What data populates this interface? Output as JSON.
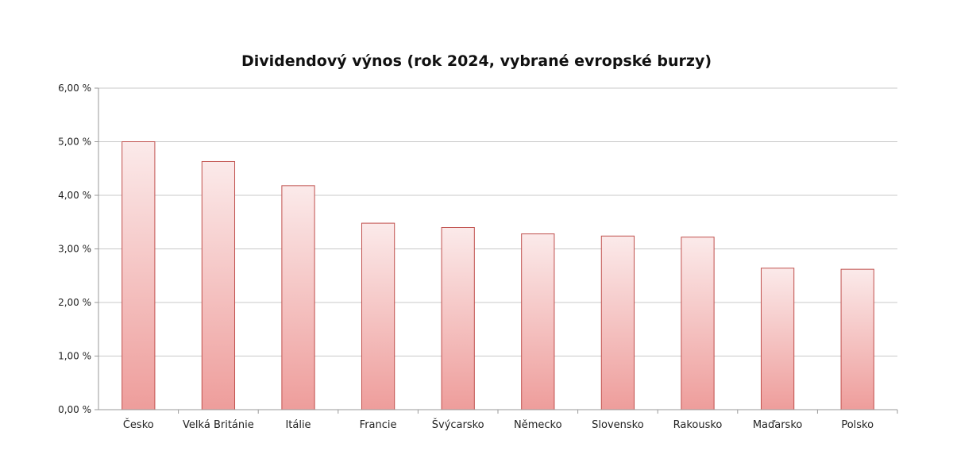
{
  "chart_data": {
    "type": "bar",
    "title": "Dividendový výnos (rok 2024, vybrané evropské burzy)",
    "xlabel": "",
    "ylabel": "",
    "categories": [
      "Česko",
      "Velká Británie",
      "Itálie",
      "Francie",
      "Švýcarsko",
      "Německo",
      "Slovensko",
      "Rakousko",
      "Maďarsko",
      "Polsko"
    ],
    "values": [
      5.0,
      4.63,
      4.18,
      3.48,
      3.4,
      3.28,
      3.24,
      3.22,
      2.64,
      2.62
    ],
    "ylim": [
      0,
      6
    ],
    "yticks": [
      0,
      1,
      2,
      3,
      4,
      5,
      6
    ],
    "ytick_labels": [
      "0,00 %",
      "1,00 %",
      "2,00 %",
      "3,00 %",
      "4,00 %",
      "5,00 %",
      "6,00 %"
    ],
    "grid": true,
    "legend": "none",
    "colors": {
      "bar_top": "#fbeaea",
      "bar_bottom": "#ee9d9b",
      "bar_border": "#c0504d",
      "grid": "#c8c8c8"
    }
  }
}
